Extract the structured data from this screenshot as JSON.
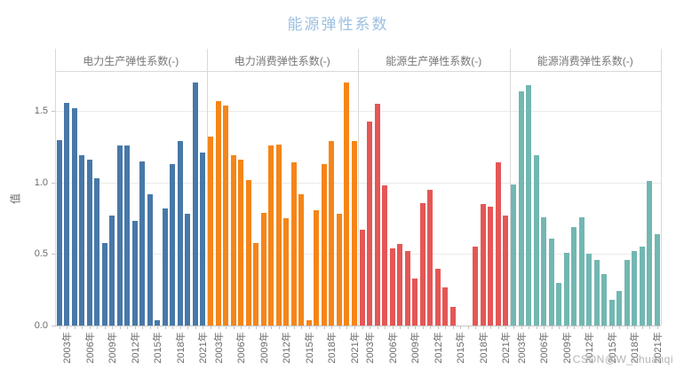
{
  "title": {
    "text": "能源弹性系数",
    "color": "#9cc0e2"
  },
  "watermark": {
    "text": "CSDN@W_chuanqi",
    "color": "#b7b1b4"
  },
  "y_axis": {
    "label": "值",
    "tick_labels": [
      "0.0",
      "0.5",
      "1.0",
      "1.5"
    ]
  },
  "chart_data": {
    "type": "bar",
    "title": "能源弹性系数",
    "xlabel": "",
    "ylabel": "值",
    "ylim": [
      0,
      1.77
    ],
    "grid": true,
    "legend": "none",
    "yticks": [
      0,
      0.5,
      1.0,
      1.5
    ],
    "years": [
      2002,
      2003,
      2004,
      2005,
      2006,
      2007,
      2008,
      2009,
      2010,
      2011,
      2012,
      2013,
      2014,
      2015,
      2016,
      2017,
      2018,
      2019,
      2020,
      2021
    ],
    "x_ticks": [
      {
        "index": 1,
        "label": "2003年"
      },
      {
        "index": 4,
        "label": "2006年"
      },
      {
        "index": 7,
        "label": "2009年"
      },
      {
        "index": 10,
        "label": "2012年"
      },
      {
        "index": 13,
        "label": "2015年"
      },
      {
        "index": 16,
        "label": "2018年"
      },
      {
        "index": 19,
        "label": "2021年"
      }
    ],
    "facets": [
      {
        "label": "电力生产弹性系数(-)",
        "color": "#4878a8",
        "values": [
          1.3,
          1.56,
          1.52,
          1.19,
          1.16,
          1.03,
          0.58,
          0.77,
          1.26,
          1.26,
          0.73,
          1.15,
          0.92,
          0.04,
          0.82,
          1.13,
          1.29,
          0.78,
          1.7,
          1.21
        ]
      },
      {
        "label": "电力消费弹性系数(-)",
        "color": "#f58518",
        "values": [
          1.32,
          1.57,
          1.54,
          1.19,
          1.16,
          1.02,
          0.58,
          0.79,
          1.26,
          1.27,
          0.75,
          1.14,
          0.92,
          0.04,
          0.81,
          1.13,
          1.29,
          0.78,
          1.7,
          1.29
        ]
      },
      {
        "label": "能源生产弹性系数(-)",
        "color": "#e45756",
        "values": [
          0.67,
          1.43,
          1.55,
          0.98,
          0.54,
          0.57,
          0.52,
          0.33,
          0.86,
          0.95,
          0.4,
          0.27,
          0.13,
          0.0,
          0.0,
          0.55,
          0.85,
          0.83,
          1.14,
          0.77
        ]
      },
      {
        "label": "能源消费弹性系数(-)",
        "color": "#72b7b2",
        "values": [
          0.99,
          1.64,
          1.68,
          1.19,
          0.76,
          0.61,
          0.3,
          0.51,
          0.69,
          0.76,
          0.5,
          0.46,
          0.36,
          0.18,
          0.24,
          0.46,
          0.52,
          0.55,
          1.01,
          0.64
        ]
      }
    ]
  }
}
